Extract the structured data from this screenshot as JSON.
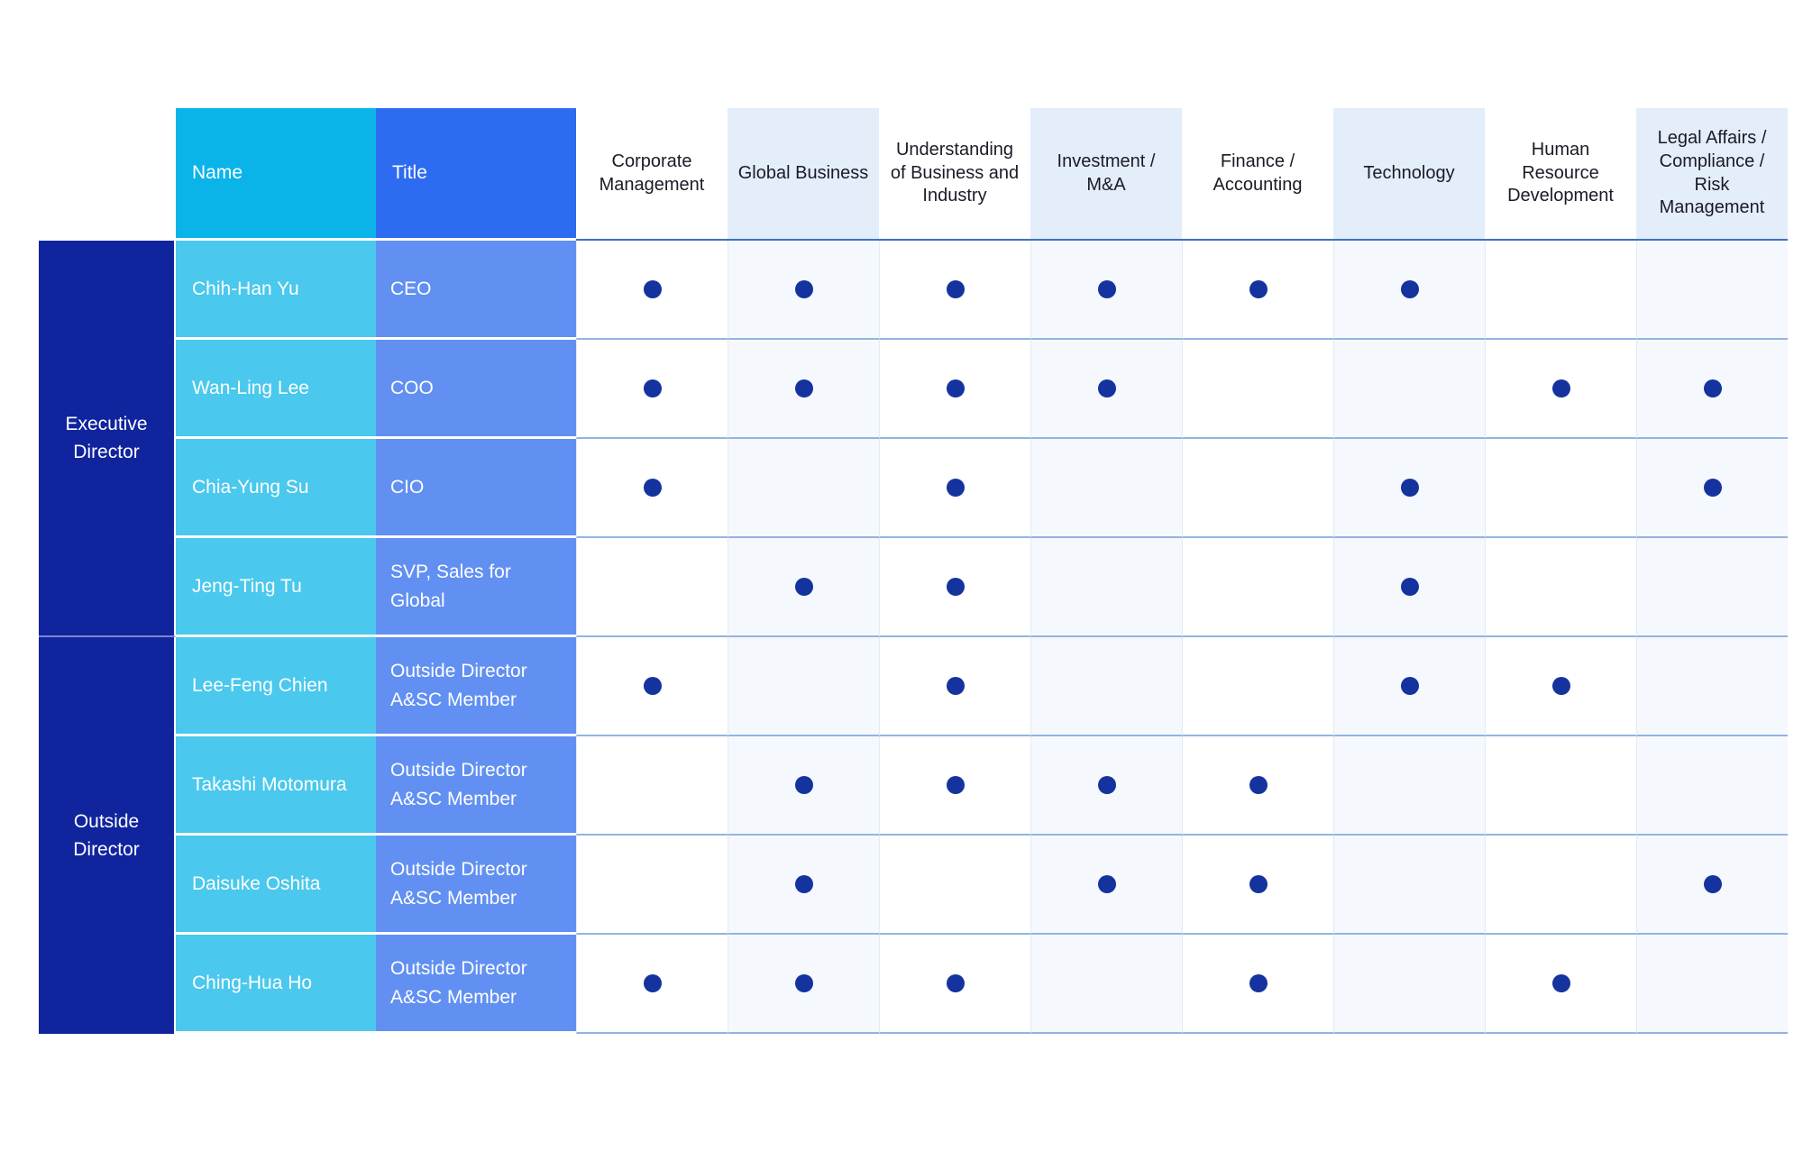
{
  "chart_data": {
    "type": "table",
    "name_header": "Name",
    "title_header": "Title",
    "skill_columns": [
      "Corporate Management",
      "Global Business",
      "Understanding of Business and Industry",
      "Investment / M&A",
      "Finance / Accounting",
      "Technology",
      "Human Resource Development",
      "Legal Affairs / Compliance / Risk Management"
    ],
    "dot_symbol": "●",
    "groups": [
      {
        "label": "Executive Director",
        "rows": [
          {
            "name": "Chih-Han Yu",
            "title": "CEO",
            "skills": [
              1,
              1,
              1,
              1,
              1,
              1,
              0,
              0
            ]
          },
          {
            "name": "Wan-Ling Lee",
            "title": "COO",
            "skills": [
              1,
              1,
              1,
              1,
              0,
              0,
              1,
              1
            ]
          },
          {
            "name": "Chia-Yung Su",
            "title": "CIO",
            "skills": [
              1,
              0,
              1,
              0,
              0,
              1,
              0,
              1
            ]
          },
          {
            "name": "Jeng-Ting Tu",
            "title": "SVP, Sales for Global",
            "skills": [
              0,
              1,
              1,
              0,
              0,
              1,
              0,
              0
            ]
          }
        ]
      },
      {
        "label": "Outside Director",
        "rows": [
          {
            "name": "Lee-Feng Chien",
            "title": "Outside Director A&SC Member",
            "skills": [
              1,
              0,
              1,
              0,
              0,
              1,
              1,
              0
            ]
          },
          {
            "name": "Takashi Motomura",
            "title": "Outside Director A&SC Member",
            "skills": [
              0,
              1,
              1,
              1,
              1,
              0,
              0,
              0
            ]
          },
          {
            "name": "Daisuke Oshita",
            "title": "Outside Director A&SC Member",
            "skills": [
              0,
              1,
              0,
              1,
              1,
              0,
              0,
              1
            ]
          },
          {
            "name": "Ching-Hua Ho",
            "title": "Outside Director A&SC Member",
            "skills": [
              1,
              1,
              1,
              0,
              1,
              0,
              1,
              0
            ]
          }
        ]
      }
    ]
  },
  "colors": {
    "group_bg": "#10249E",
    "name_header_bg": "#0AB4E8",
    "title_header_bg": "#2D6BF0",
    "name_cell_bg": "#4AC8ED",
    "title_cell_bg": "#6190F2",
    "column_tint_header": "#E4EDFA",
    "column_tint_body": "#F5F8FD",
    "dot": "#14339E",
    "header_rule": "#3A72C8",
    "row_rule": "#93B4DF",
    "header_text": "#1B1B28",
    "cell_text": "#FFFFFF"
  }
}
